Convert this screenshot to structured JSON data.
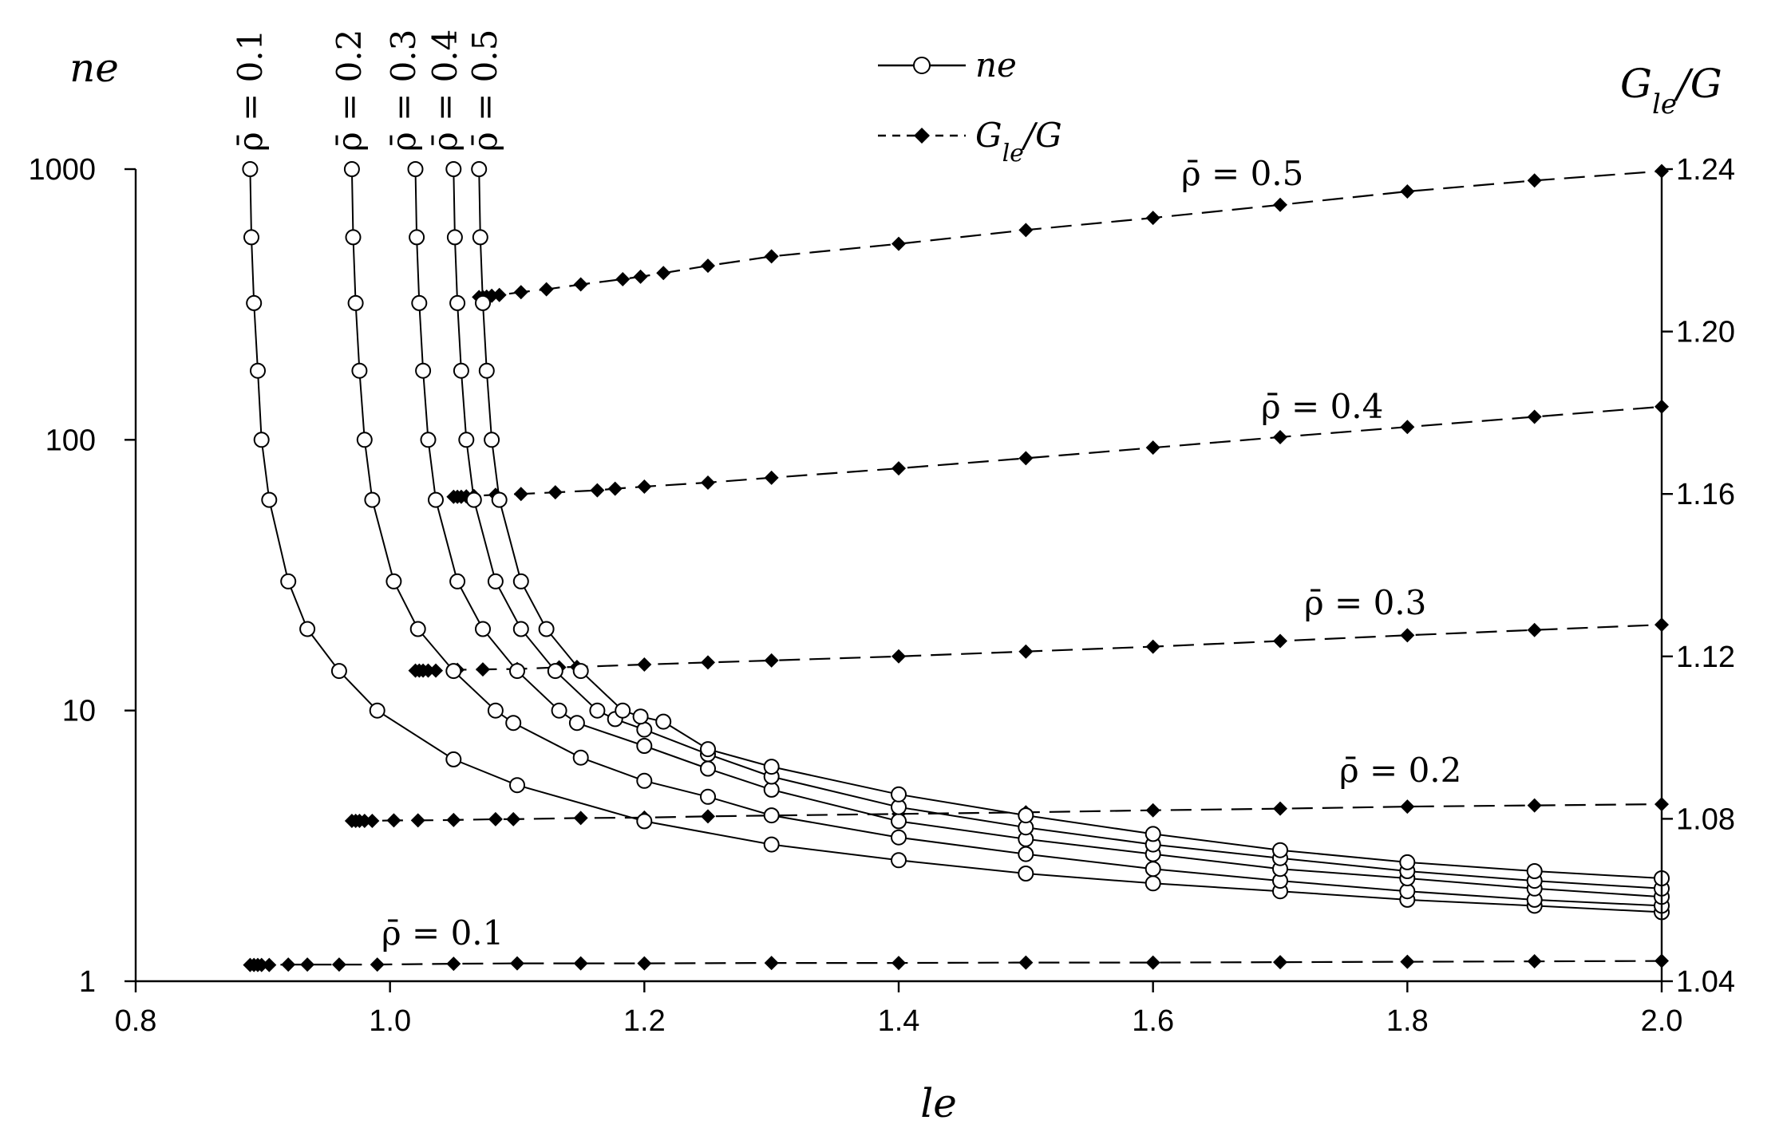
{
  "chart_data": {
    "type": "line",
    "xlabel": "le",
    "ylabel_left": "ne",
    "ylabel_right_main": "G",
    "ylabel_right_sub": "le",
    "ylabel_right_tail": "/G",
    "xlim": [
      0.8,
      2.0
    ],
    "x_ticks": [
      "0.8",
      "1.0",
      "1.2",
      "1.4",
      "1.6",
      "1.8",
      "2.0"
    ],
    "y_left_scale": "log",
    "y_left_lim": [
      1,
      1000
    ],
    "y_left_ticks": [
      "1",
      "10",
      "100",
      "1000"
    ],
    "y_right_lim": [
      1.04,
      1.24
    ],
    "y_right_ticks": [
      "1.04",
      "1.08",
      "1.12",
      "1.16",
      "1.20",
      "1.24"
    ],
    "legend": {
      "placement": "top-center",
      "entries": [
        {
          "label": "ne",
          "style": "solid-open-circle"
        },
        {
          "label_main": "G",
          "label_sub": "le",
          "label_tail": "/G",
          "style": "dashed-filled-diamond"
        }
      ]
    },
    "ne_series": [
      {
        "name": "ρ̄ = 0.1",
        "x": [
          0.89,
          0.891,
          0.893,
          0.896,
          0.899,
          0.905,
          0.92,
          0.935,
          0.96,
          0.99,
          1.05,
          1.1,
          1.2,
          1.3,
          1.4,
          1.5,
          1.6,
          1.7,
          1.8,
          1.9,
          2.0
        ],
        "y": [
          1000,
          560,
          320,
          180,
          100,
          60,
          30,
          20,
          14,
          10,
          6.6,
          5.3,
          3.9,
          3.2,
          2.8,
          2.5,
          2.3,
          2.15,
          2.0,
          1.9,
          1.8
        ]
      },
      {
        "name": "ρ̄ = 0.2",
        "x": [
          0.97,
          0.971,
          0.973,
          0.976,
          0.98,
          0.986,
          1.003,
          1.022,
          1.05,
          1.083,
          1.097,
          1.15,
          1.2,
          1.25,
          1.3,
          1.4,
          1.5,
          1.6,
          1.7,
          1.8,
          1.9,
          2.0
        ],
        "y": [
          1000,
          560,
          320,
          180,
          100,
          60,
          30,
          20,
          14,
          10,
          9,
          6.7,
          5.5,
          4.8,
          4.1,
          3.4,
          2.95,
          2.6,
          2.35,
          2.15,
          2.0,
          1.9
        ]
      },
      {
        "name": "ρ̄ = 0.3",
        "x": [
          1.02,
          1.021,
          1.023,
          1.026,
          1.03,
          1.036,
          1.053,
          1.073,
          1.1,
          1.133,
          1.147,
          1.2,
          1.25,
          1.3,
          1.4,
          1.5,
          1.6,
          1.7,
          1.8,
          1.9,
          2.0
        ],
        "y": [
          1000,
          560,
          320,
          180,
          100,
          60,
          30,
          20,
          14,
          10,
          9,
          7.4,
          6.1,
          5.1,
          3.9,
          3.35,
          2.95,
          2.6,
          2.4,
          2.2,
          2.05
        ]
      },
      {
        "name": "ρ̄ = 0.4",
        "x": [
          1.05,
          1.051,
          1.053,
          1.056,
          1.06,
          1.066,
          1.083,
          1.103,
          1.13,
          1.163,
          1.177,
          1.2,
          1.25,
          1.3,
          1.4,
          1.5,
          1.6,
          1.7,
          1.8,
          1.9,
          2.0
        ],
        "y": [
          1000,
          560,
          320,
          180,
          100,
          60,
          30,
          20,
          14,
          10,
          9.3,
          8.5,
          6.9,
          5.7,
          4.4,
          3.7,
          3.2,
          2.85,
          2.55,
          2.35,
          2.2
        ]
      },
      {
        "name": "ρ̄ = 0.5",
        "x": [
          1.07,
          1.071,
          1.073,
          1.076,
          1.08,
          1.086,
          1.103,
          1.123,
          1.15,
          1.183,
          1.197,
          1.215,
          1.25,
          1.3,
          1.4,
          1.5,
          1.6,
          1.7,
          1.8,
          1.9,
          2.0
        ],
        "y": [
          1000,
          560,
          320,
          180,
          100,
          60,
          30,
          20,
          14,
          10,
          9.5,
          9.1,
          7.2,
          6.2,
          4.9,
          4.1,
          3.5,
          3.05,
          2.75,
          2.55,
          2.4
        ]
      }
    ],
    "g_series": [
      {
        "name": "ρ̄ = 0.1",
        "x": [
          0.89,
          0.893,
          0.896,
          0.899,
          0.905,
          0.92,
          0.935,
          0.96,
          0.99,
          1.05,
          1.1,
          1.15,
          1.2,
          1.3,
          1.4,
          1.5,
          1.6,
          1.7,
          1.8,
          1.9,
          2.0
        ],
        "y": [
          1.044,
          1.044,
          1.044,
          1.044,
          1.044,
          1.0441,
          1.0441,
          1.0441,
          1.0441,
          1.0443,
          1.0444,
          1.0444,
          1.0444,
          1.0445,
          1.0445,
          1.0446,
          1.0446,
          1.0447,
          1.0448,
          1.0449,
          1.045
        ]
      },
      {
        "name": "ρ̄ = 0.2",
        "x": [
          0.97,
          0.973,
          0.976,
          0.98,
          0.986,
          1.003,
          1.022,
          1.05,
          1.083,
          1.097,
          1.15,
          1.2,
          1.25,
          1.3,
          1.4,
          1.5,
          1.6,
          1.7,
          1.8,
          1.9,
          2.0
        ],
        "y": [
          1.0795,
          1.0795,
          1.0795,
          1.0795,
          1.0795,
          1.0796,
          1.0796,
          1.0797,
          1.0799,
          1.0799,
          1.0802,
          1.0803,
          1.0806,
          1.0808,
          1.0812,
          1.0816,
          1.0821,
          1.0825,
          1.083,
          1.0833,
          1.0836
        ]
      },
      {
        "name": "ρ̄ = 0.3",
        "x": [
          1.02,
          1.023,
          1.026,
          1.03,
          1.036,
          1.053,
          1.073,
          1.1,
          1.133,
          1.147,
          1.2,
          1.25,
          1.3,
          1.4,
          1.5,
          1.6,
          1.7,
          1.8,
          1.9,
          2.0
        ],
        "y": [
          1.1165,
          1.1165,
          1.1165,
          1.1165,
          1.1165,
          1.1167,
          1.1168,
          1.1169,
          1.1173,
          1.1174,
          1.118,
          1.1185,
          1.119,
          1.12,
          1.1212,
          1.1224,
          1.1238,
          1.1252,
          1.1265,
          1.1278
        ]
      },
      {
        "name": "ρ̄ = 0.4",
        "x": [
          1.05,
          1.053,
          1.056,
          1.06,
          1.066,
          1.083,
          1.103,
          1.13,
          1.163,
          1.177,
          1.2,
          1.25,
          1.3,
          1.4,
          1.5,
          1.6,
          1.7,
          1.8,
          1.9,
          2.0
        ],
        "y": [
          1.1593,
          1.1593,
          1.1593,
          1.1594,
          1.1595,
          1.1598,
          1.16,
          1.1604,
          1.1609,
          1.1613,
          1.1618,
          1.1628,
          1.164,
          1.1663,
          1.1688,
          1.1714,
          1.174,
          1.1765,
          1.179,
          1.1815
        ]
      },
      {
        "name": "ρ̄ = 0.5",
        "x": [
          1.07,
          1.073,
          1.076,
          1.08,
          1.086,
          1.103,
          1.123,
          1.15,
          1.183,
          1.197,
          1.215,
          1.25,
          1.3,
          1.4,
          1.5,
          1.6,
          1.7,
          1.8,
          1.9,
          2.0
        ],
        "y": [
          1.2085,
          1.2085,
          1.2086,
          1.2088,
          1.209,
          1.2097,
          1.2104,
          1.2116,
          1.2129,
          1.2135,
          1.2144,
          1.2162,
          1.2185,
          1.2216,
          1.225,
          1.228,
          1.2312,
          1.2345,
          1.2372,
          1.2395
        ]
      }
    ],
    "annotations": {
      "vertical": [
        {
          "text": "ρ̄ = 0.1"
        },
        {
          "text": "ρ̄ = 0.2"
        },
        {
          "text": "ρ̄ = 0.3"
        },
        {
          "text": "ρ̄ = 0.4"
        },
        {
          "text": "ρ̄ = 0.5"
        }
      ],
      "horizontal": [
        {
          "text": "ρ̄ = 0.5"
        },
        {
          "text": "ρ̄ = 0.4"
        },
        {
          "text": "ρ̄ = 0.3"
        },
        {
          "text": "ρ̄ = 0.2"
        },
        {
          "text": "ρ̄ = 0.1"
        }
      ]
    }
  }
}
